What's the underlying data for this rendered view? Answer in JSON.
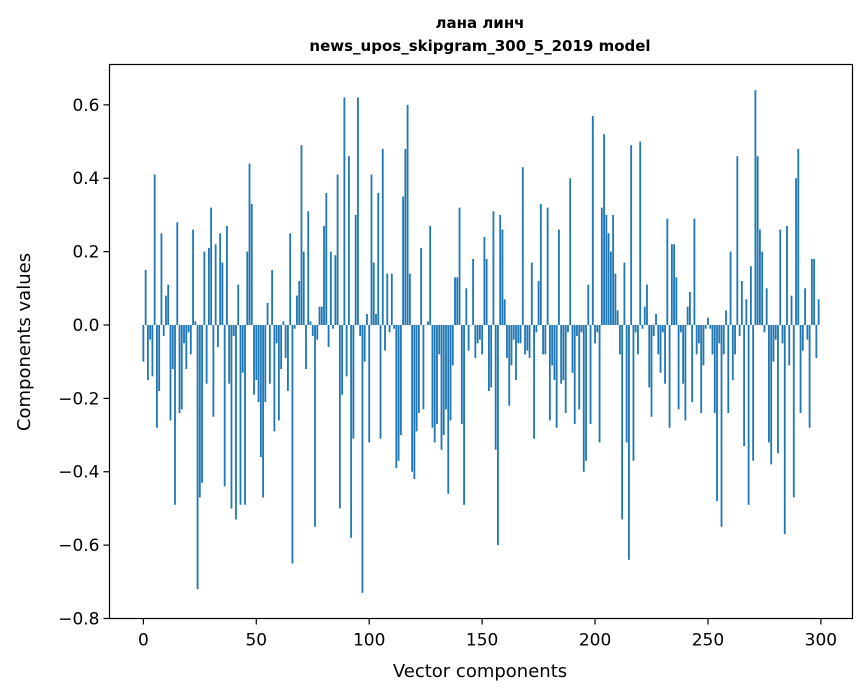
{
  "chart_data": {
    "type": "bar",
    "title": "лана линч",
    "subtitle": "news_upos_skipgram_300_5_2019 model",
    "xlabel": "Vector components",
    "ylabel": "Components values",
    "xlim": [
      -15,
      314
    ],
    "ylim": [
      -0.8,
      0.71
    ],
    "xticks": [
      0,
      50,
      100,
      150,
      200,
      250,
      300
    ],
    "yticks": [
      -0.8,
      -0.6,
      -0.4,
      -0.2,
      0.0,
      0.2,
      0.4,
      0.6
    ],
    "ytick_labels": [
      "−0.8",
      "−0.6",
      "−0.4",
      "−0.2",
      "0.0",
      "0.2",
      "0.4",
      "0.6"
    ],
    "grid": false,
    "bar_color": "#1f77b4",
    "x": "0..299 (component index)",
    "values": [
      -0.1,
      0.15,
      -0.15,
      -0.04,
      -0.14,
      0.41,
      -0.28,
      -0.18,
      0.25,
      -0.03,
      0.08,
      0.11,
      -0.26,
      -0.12,
      -0.49,
      0.28,
      -0.24,
      -0.23,
      -0.05,
      -0.12,
      -0.02,
      -0.08,
      0.26,
      0.01,
      -0.72,
      -0.47,
      -0.43,
      0.2,
      -0.16,
      0.21,
      0.32,
      -0.25,
      0.22,
      -0.06,
      0.25,
      0.17,
      -0.44,
      0.27,
      -0.16,
      -0.5,
      -0.03,
      -0.53,
      0.11,
      -0.49,
      -0.13,
      -0.49,
      0.2,
      0.44,
      0.33,
      -0.19,
      -0.15,
      -0.21,
      -0.36,
      -0.47,
      -0.21,
      0.06,
      -0.16,
      0.15,
      -0.29,
      -0.05,
      -0.26,
      -0.12,
      0.01,
      -0.09,
      -0.18,
      0.25,
      -0.65,
      -0.01,
      0.08,
      0.12,
      0.49,
      0.2,
      -0.12,
      0.31,
      0.01,
      -0.03,
      -0.55,
      -0.04,
      0.05,
      0.05,
      0.27,
      0.36,
      -0.06,
      0.2,
      -0.01,
      0.19,
      0.41,
      -0.5,
      -0.19,
      0.62,
      -0.14,
      0.46,
      -0.58,
      -0.31,
      0.3,
      0.62,
      -0.03,
      -0.73,
      -0.1,
      0.03,
      -0.32,
      0.41,
      0.17,
      0.03,
      0.36,
      -0.31,
      0.48,
      -0.07,
      0.14,
      -0.02,
      0.14,
      -0.01,
      -0.39,
      -0.37,
      -0.3,
      0.35,
      0.48,
      0.6,
      0.14,
      -0.4,
      -0.42,
      -0.29,
      -0.24,
      0.21,
      -0.23,
      0.0,
      0.01,
      0.27,
      -0.28,
      -0.32,
      -0.27,
      -0.08,
      -0.34,
      -0.3,
      -0.23,
      -0.46,
      -0.26,
      -0.11,
      0.13,
      0.13,
      0.32,
      -0.27,
      -0.49,
      0.1,
      -0.07,
      0.0,
      0.18,
      -0.09,
      -0.05,
      -0.04,
      -0.08,
      0.24,
      0.18,
      -0.18,
      -0.17,
      0.31,
      -0.34,
      -0.6,
      0.3,
      0.26,
      0.07,
      -0.09,
      -0.22,
      -0.11,
      -0.04,
      -0.15,
      -0.05,
      -0.05,
      0.43,
      -0.08,
      -0.07,
      -0.09,
      0.17,
      -0.31,
      -0.02,
      0.12,
      0.33,
      -0.08,
      -0.08,
      0.32,
      -0.26,
      -0.11,
      -0.15,
      -0.28,
      0.26,
      -0.16,
      -0.15,
      -0.24,
      -0.02,
      0.4,
      -0.13,
      -0.27,
      -0.03,
      -0.23,
      -0.02,
      -0.4,
      -0.37,
      0.11,
      -0.27,
      0.57,
      -0.05,
      -0.02,
      -0.32,
      0.32,
      0.52,
      0.3,
      0.25,
      0.2,
      0.3,
      0.14,
      0.04,
      -0.08,
      -0.53,
      0.17,
      -0.32,
      -0.64,
      0.49,
      -0.37,
      -0.02,
      -0.08,
      0.5,
      -0.01,
      0.05,
      0.11,
      -0.17,
      -0.25,
      -0.03,
      0.03,
      -0.08,
      -0.13,
      -0.02,
      -0.16,
      0.29,
      -0.28,
      0.22,
      0.22,
      0.13,
      -0.23,
      -0.02,
      -0.16,
      -0.26,
      0.05,
      0.09,
      -0.21,
      0.29,
      -0.08,
      -0.05,
      -0.24,
      -0.11,
      -0.01,
      0.02,
      -0.01,
      -0.08,
      -0.24,
      -0.48,
      -0.05,
      -0.55,
      -0.08,
      0.04,
      -0.24,
      0.2,
      -0.15,
      -0.08,
      0.46,
      -0.03,
      0.12,
      -0.33,
      0.07,
      -0.49,
      0.16,
      -0.37,
      0.64,
      0.46,
      0.26,
      0.2,
      -0.02,
      0.1,
      -0.32,
      -0.38,
      -0.1,
      -0.04,
      -0.35,
      0.26,
      -0.05,
      -0.57,
      0.27,
      -0.11,
      0.08,
      -0.47,
      0.4,
      0.48,
      -0.24,
      -0.07,
      0.1,
      -0.04,
      -0.28,
      0.18,
      0.18,
      -0.09,
      0.07
    ]
  }
}
